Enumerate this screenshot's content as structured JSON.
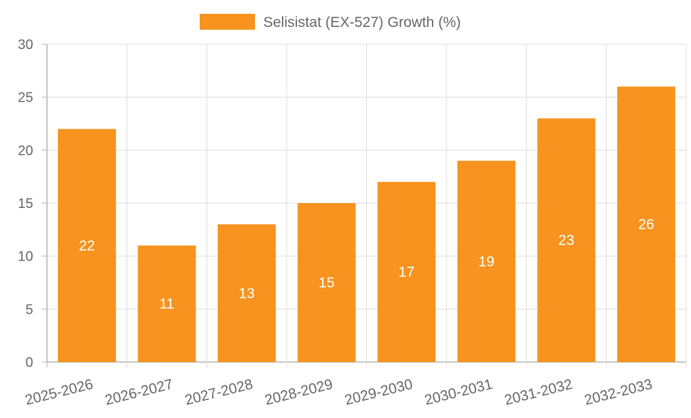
{
  "chart_data": {
    "type": "bar",
    "title": "",
    "categories": [
      "2025-2026",
      "2026-2027",
      "2027-2028",
      "2028-2029",
      "2029-2030",
      "2030-2031",
      "2031-2032",
      "2032-2033"
    ],
    "series": [
      {
        "name": "Selisistat (EX-527) Growth (%)",
        "values": [
          22,
          11,
          13,
          15,
          17,
          19,
          23,
          26
        ]
      }
    ],
    "xlabel": "",
    "ylabel": "",
    "ylim": [
      0,
      30
    ],
    "yticks": [
      "0",
      "5",
      "10",
      "15",
      "20",
      "25",
      "30"
    ],
    "grid": true,
    "legend": "top-center",
    "data_labels": true
  },
  "colors": {
    "bar": "#f7931e",
    "grid": "#dcdcdc",
    "axis": "#b4b4b4",
    "tick_text": "#666666",
    "label_text": "#ffffff",
    "background": "#ffffff"
  }
}
